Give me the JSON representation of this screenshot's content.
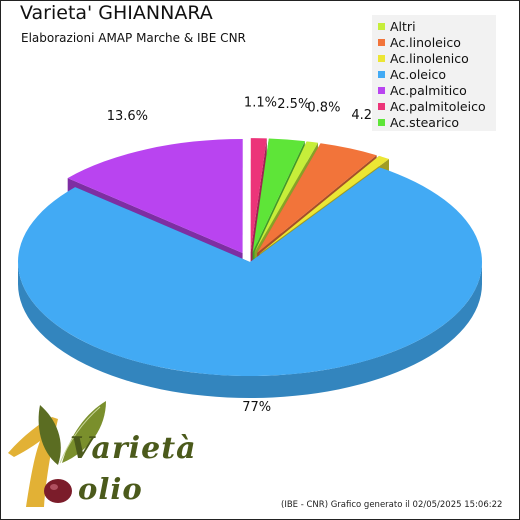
{
  "chart_data": {
    "type": "pie",
    "title": "Varieta' GHIANNARA",
    "subtitle": "Elaborazioni AMAP Marche & IBE CNR",
    "series": [
      {
        "name": "Altri",
        "value": 0.8,
        "label": "0.8%",
        "color": "#c6ee3a"
      },
      {
        "name": "Ac.linoleico",
        "value": 4.2,
        "label": "4.2%",
        "color": "#f2743a"
      },
      {
        "name": "Ac.linolenico",
        "value": 0.8,
        "label": "0.8%",
        "color": "#ece634"
      },
      {
        "name": "Ac.oleico",
        "value": 77,
        "label": "77%",
        "color": "#42aaf4"
      },
      {
        "name": "Ac.palmitico",
        "value": 13.6,
        "label": "13.6%",
        "color": "#b944f0"
      },
      {
        "name": "Ac.palmitoleico",
        "value": 1.1,
        "label": "1.1%",
        "color": "#ec3479"
      },
      {
        "name": "Ac.stearico",
        "value": 2.5,
        "label": "2.5%",
        "color": "#5ee538"
      }
    ],
    "legend_position": "top-right",
    "style": "3d-exploded"
  },
  "footer": "(IBE - CNR) Grafico generato il 02/05/2025 15:06:22",
  "logo": {
    "brand": "Varietà Olio"
  }
}
